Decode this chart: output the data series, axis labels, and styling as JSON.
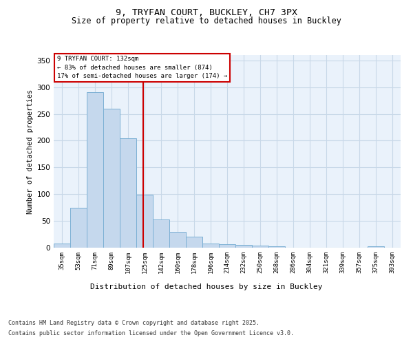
{
  "title1": "9, TRYFAN COURT, BUCKLEY, CH7 3PX",
  "title2": "Size of property relative to detached houses in Buckley",
  "xlabel": "Distribution of detached houses by size in Buckley",
  "ylabel": "Number of detached properties",
  "bar_color": "#c5d8ed",
  "bar_edge_color": "#7aafd4",
  "grid_color": "#c8d8e8",
  "bg_color": "#eaf2fb",
  "categories": [
    "35sqm",
    "53sqm",
    "71sqm",
    "89sqm",
    "107sqm",
    "125sqm",
    "142sqm",
    "160sqm",
    "178sqm",
    "196sqm",
    "214sqm",
    "232sqm",
    "250sqm",
    "268sqm",
    "286sqm",
    "304sqm",
    "321sqm",
    "339sqm",
    "357sqm",
    "375sqm",
    "393sqm"
  ],
  "values": [
    8,
    75,
    290,
    260,
    205,
    99,
    53,
    30,
    20,
    8,
    7,
    5,
    4,
    3,
    0,
    0,
    0,
    0,
    0,
    3,
    0
  ],
  "property_line_color": "#cc0000",
  "annotation_text": "9 TRYFAN COURT: 132sqm\n← 83% of detached houses are smaller (874)\n17% of semi-detached houses are larger (174) →",
  "annotation_box_color": "#cc0000",
  "ylim": [
    0,
    360
  ],
  "yticks": [
    0,
    50,
    100,
    150,
    200,
    250,
    300,
    350
  ],
  "footnote1": "Contains HM Land Registry data © Crown copyright and database right 2025.",
  "footnote2": "Contains public sector information licensed under the Open Government Licence v3.0."
}
